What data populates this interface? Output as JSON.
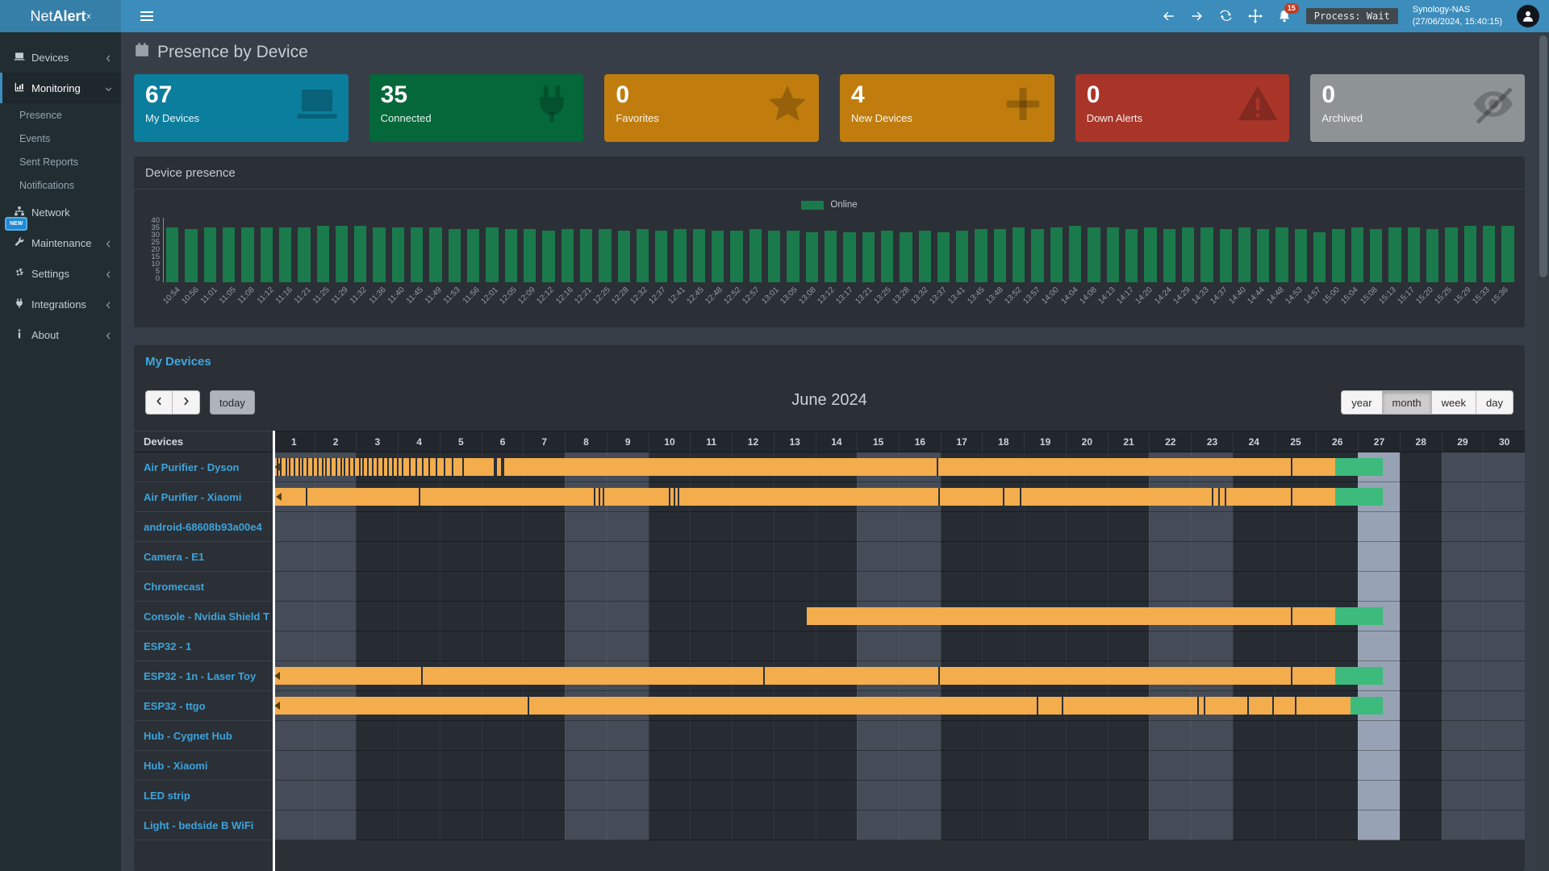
{
  "app": {
    "logo_prefix": "Net",
    "logo_bold": "Alert",
    "logo_sup": "x"
  },
  "topbar": {
    "notification_count": "15",
    "process_label": "Process: Wait",
    "host_name": "Synology-NAS",
    "host_time": "(27/06/2024, 15:40:15)"
  },
  "sidebar": {
    "items": [
      {
        "label": "Devices",
        "icon": "laptop-icon",
        "chevron": "left"
      },
      {
        "label": "Monitoring",
        "icon": "chart-icon",
        "chevron": "down",
        "active": true,
        "children": [
          "Presence",
          "Events",
          "Sent Reports",
          "Notifications"
        ]
      },
      {
        "label": "Network",
        "icon": "sitemap-icon",
        "chevron": null
      },
      {
        "label": "Maintenance",
        "icon": "wrench-icon",
        "chevron": "left",
        "badge": "NEW"
      },
      {
        "label": "Settings",
        "icon": "gear-icon",
        "chevron": "left"
      },
      {
        "label": "Integrations",
        "icon": "plug-icon",
        "chevron": "left"
      },
      {
        "label": "About",
        "icon": "info-icon",
        "chevron": "left"
      }
    ]
  },
  "page": {
    "title": "Presence by Device"
  },
  "summary_cards": [
    {
      "value": "67",
      "label": "My Devices",
      "color": "#0b7e9d",
      "icon": "laptop-icon"
    },
    {
      "value": "35",
      "label": "Connected",
      "color": "#04683a",
      "icon": "plug-icon"
    },
    {
      "value": "0",
      "label": "Favorites",
      "color": "#c07d0e",
      "icon": "star-icon"
    },
    {
      "value": "4",
      "label": "New Devices",
      "color": "#c07d0e",
      "icon": "plus-icon"
    },
    {
      "value": "0",
      "label": "Down Alerts",
      "color": "#a93529",
      "icon": "warning-icon"
    },
    {
      "value": "0",
      "label": "Archived",
      "color": "#8e9496",
      "icon": "eye-slash-icon"
    }
  ],
  "presence": {
    "title": "Device presence",
    "legend_label": "Online",
    "chart_data": {
      "type": "bar",
      "title": "Device presence",
      "legend": [
        "Online"
      ],
      "legend_position": "top-center",
      "series_color": "#1b7a4b",
      "ylim": [
        0,
        40
      ],
      "yticks": [
        40,
        35,
        30,
        25,
        20,
        15,
        10,
        5,
        0
      ],
      "x": [
        "10:54",
        "10:56",
        "11:01",
        "11:05",
        "11:08",
        "11:12",
        "11:16",
        "11:21",
        "11:25",
        "11:29",
        "11:32",
        "11:36",
        "11:40",
        "11:45",
        "11:49",
        "11:53",
        "11:56",
        "12:01",
        "12:05",
        "12:09",
        "12:12",
        "12:16",
        "12:21",
        "12:25",
        "12:28",
        "12:32",
        "12:37",
        "12:41",
        "12:45",
        "12:48",
        "12:52",
        "12:57",
        "13:01",
        "13:05",
        "13:08",
        "13:12",
        "13:17",
        "13:21",
        "13:25",
        "13:28",
        "13:32",
        "13:37",
        "13:41",
        "13:45",
        "13:48",
        "13:52",
        "13:57",
        "14:00",
        "14:04",
        "14:08",
        "14:13",
        "14:17",
        "14:20",
        "14:24",
        "14:29",
        "14:33",
        "14:37",
        "14:40",
        "14:44",
        "14:48",
        "14:53",
        "14:57",
        "15:00",
        "15:04",
        "15:08",
        "15:13",
        "15:17",
        "15:20",
        "15:25",
        "15:29",
        "15:33",
        "15:36"
      ],
      "values": [
        34,
        33,
        34,
        34,
        34,
        34,
        34,
        34,
        35,
        35,
        35,
        34,
        34,
        34,
        34,
        33,
        33,
        34,
        33,
        33,
        32,
        33,
        33,
        33,
        32,
        33,
        32,
        33,
        33,
        32,
        32,
        33,
        32,
        32,
        31,
        32,
        31,
        31,
        32,
        31,
        32,
        31,
        32,
        33,
        33,
        34,
        33,
        34,
        35,
        34,
        34,
        33,
        34,
        33,
        34,
        34,
        33,
        34,
        33,
        34,
        33,
        31,
        33,
        34,
        33,
        34,
        34,
        33,
        34,
        35,
        35,
        35
      ]
    }
  },
  "calendar": {
    "section_title": "My Devices",
    "today_label": "today",
    "title": "June 2024",
    "views": [
      "year",
      "month",
      "week",
      "day"
    ],
    "active_view": "month",
    "devices_header": "Devices",
    "days": [
      1,
      2,
      3,
      4,
      5,
      6,
      7,
      8,
      9,
      10,
      11,
      12,
      13,
      14,
      15,
      16,
      17,
      18,
      19,
      20,
      21,
      22,
      23,
      24,
      25,
      26,
      27,
      28,
      29,
      30
    ],
    "weekend_days": [
      1,
      2,
      8,
      9,
      15,
      16,
      22,
      23,
      29,
      30
    ],
    "today_day": 27,
    "devices": [
      {
        "name": "Air Purifier - Dyson",
        "bars": [
          {
            "start": 1,
            "end": 26.45,
            "state": "online",
            "arrow": true,
            "ticks": [
              1.1,
              1.18,
              1.3,
              1.38,
              1.5,
              1.62,
              1.7,
              1.82,
              1.94,
              2.06,
              2.18,
              2.26,
              2.38,
              2.5,
              2.62,
              2.7,
              2.82,
              2.94,
              3.06,
              3.14,
              3.26,
              3.38,
              3.5,
              3.62,
              3.74,
              3.86,
              3.98,
              4.1,
              4.26,
              4.42,
              4.58,
              4.74,
              4.9,
              5.1,
              5.3,
              5.55,
              16.9,
              25.4
            ],
            "thick_ticks": [
              6.3,
              6.48
            ]
          },
          {
            "start": 26.45,
            "end": 27.6,
            "state": "now"
          }
        ]
      },
      {
        "name": "Air Purifier - Xiaomi",
        "bars": [
          {
            "start": 1.04,
            "end": 26.45,
            "state": "online",
            "arrow": true,
            "ticks": [
              1.8,
              4.5,
              8.7,
              8.8,
              8.9,
              10.5,
              10.6,
              10.7,
              16.95,
              18.5,
              18.9,
              23.5,
              23.65,
              23.8,
              25.4
            ],
            "thick_ticks": []
          },
          {
            "start": 26.45,
            "end": 27.6,
            "state": "now"
          }
        ]
      },
      {
        "name": "android-68608b93a00e4",
        "bars": []
      },
      {
        "name": "Camera - E1",
        "bars": []
      },
      {
        "name": "Chromecast",
        "bars": []
      },
      {
        "name": "Console - Nvidia Shield T",
        "bars": [
          {
            "start": 13.8,
            "end": 26.45,
            "state": "online",
            "arrow": false,
            "ticks": [
              25.4
            ],
            "thick_ticks": []
          },
          {
            "start": 26.45,
            "end": 27.6,
            "state": "now"
          }
        ]
      },
      {
        "name": "ESP32 - 1",
        "bars": []
      },
      {
        "name": "ESP32 - 1n - Laser Toy",
        "bars": [
          {
            "start": 1,
            "end": 26.45,
            "state": "online",
            "arrow": true,
            "ticks": [
              4.55,
              12.75,
              16.95,
              25.4
            ],
            "thick_ticks": []
          },
          {
            "start": 26.45,
            "end": 27.6,
            "state": "now"
          }
        ]
      },
      {
        "name": "ESP32 - ttgo",
        "bars": [
          {
            "start": 1,
            "end": 26.82,
            "state": "online",
            "arrow": true,
            "ticks": [
              7.1,
              19.3,
              19.9,
              23.15,
              23.3,
              24.35,
              24.95,
              25.5
            ],
            "thick_ticks": []
          },
          {
            "start": 26.82,
            "end": 27.6,
            "state": "now"
          }
        ]
      },
      {
        "name": "Hub - Cygnet Hub",
        "bars": []
      },
      {
        "name": "Hub - Xiaomi",
        "bars": []
      },
      {
        "name": "LED strip",
        "bars": []
      },
      {
        "name": "Light - bedside B WiFi",
        "bars": []
      }
    ]
  },
  "colors": {
    "navbar": "#3c8dbc",
    "logo_bg": "#367fa9",
    "sidebar_bg": "#222d32",
    "chart_bar_online": "#1b7a4b",
    "gantt_online": "#f3ad4d",
    "gantt_now": "#3dbb7c",
    "today_column": "#97a3b4",
    "weekend_column": "#454c57",
    "weekday_column": "#272c33"
  }
}
